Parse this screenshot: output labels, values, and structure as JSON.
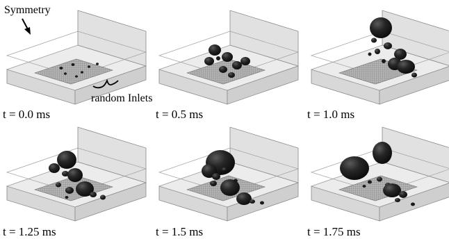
{
  "annotations": {
    "symmetry": "Symmetry",
    "inlets": "random Inlets"
  },
  "colors": {
    "box_edge": "#8a8a8a",
    "box_face": "#e6e6e6",
    "box_face_dark": "#cfcfcf",
    "plate": "#a8a8a8",
    "bubble": "#1a1a1a"
  },
  "panels": [
    {
      "time_label": "t = 0.0 ms"
    },
    {
      "time_label": "t = 0.5 ms"
    },
    {
      "time_label": "t = 1.0 ms"
    },
    {
      "time_label": "t = 1.25 ms"
    },
    {
      "time_label": "t = 1.5 ms"
    },
    {
      "time_label": "t = 1.75 ms"
    }
  ]
}
